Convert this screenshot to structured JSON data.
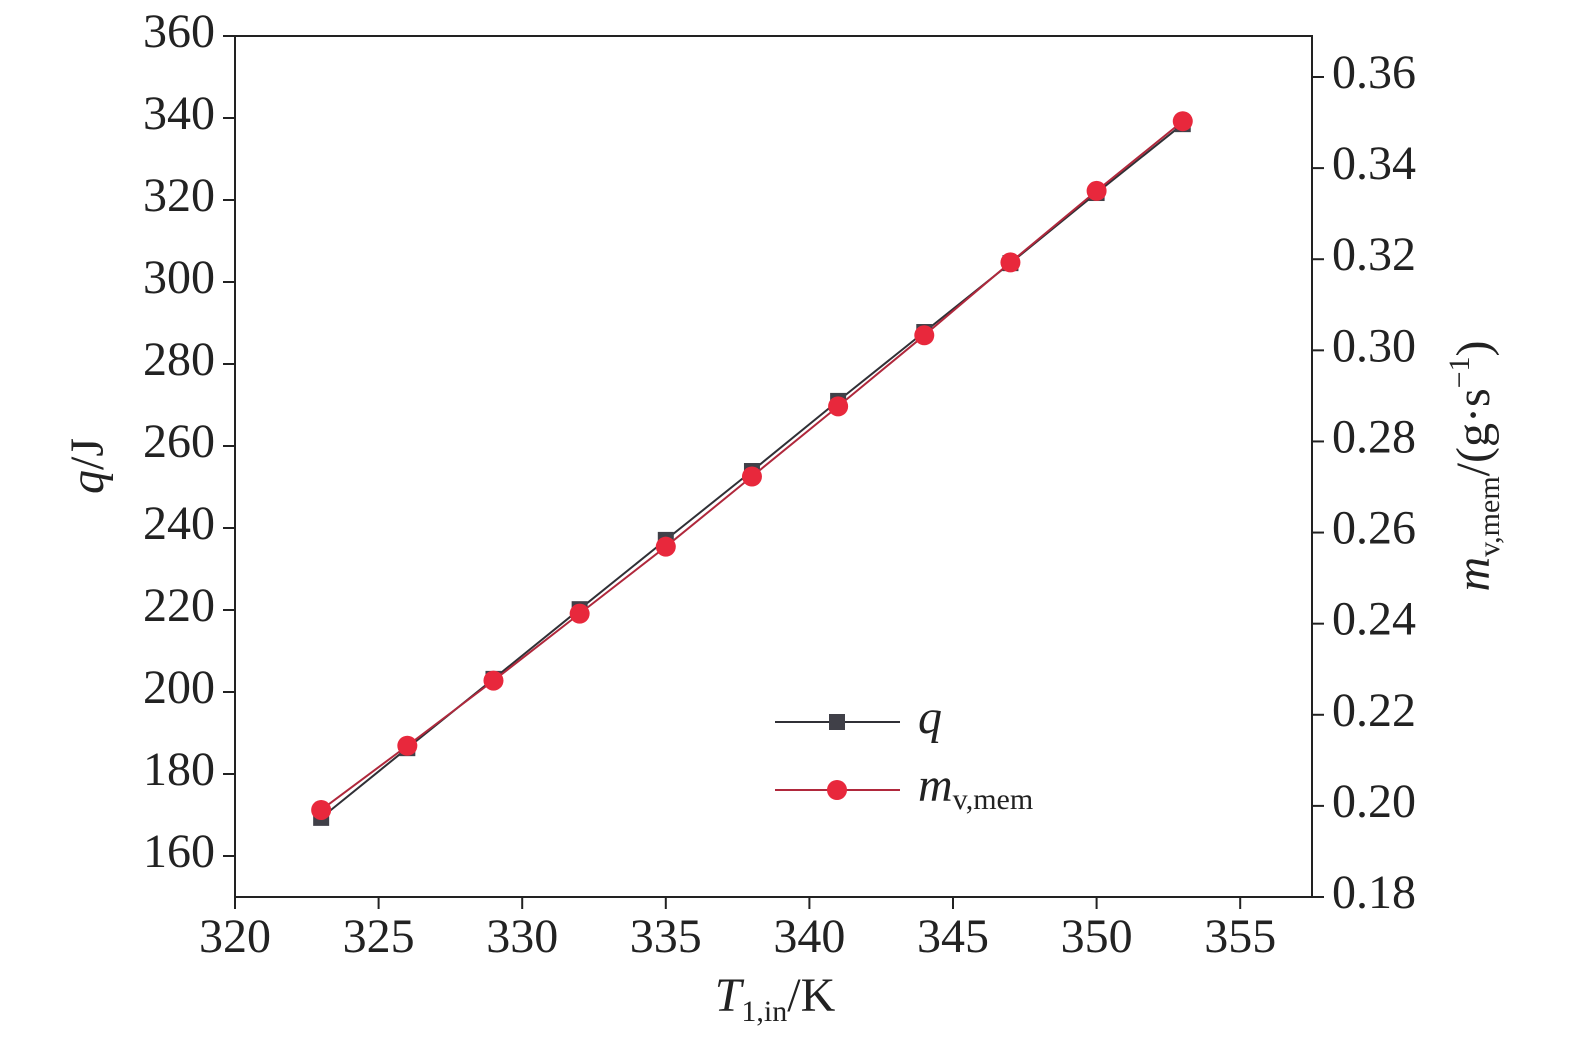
{
  "chart_data": {
    "type": "line",
    "xlabel": [
      "T",
      "1,in",
      "/K"
    ],
    "ylabel": [
      "q",
      "/J"
    ],
    "y2label": [
      "m",
      "v,mem",
      "/(g·s",
      "−1",
      ")"
    ],
    "x": [
      323,
      326,
      329,
      332,
      335,
      338,
      341,
      344,
      347,
      350,
      353
    ],
    "series": [
      {
        "name": "q",
        "color": "#404048",
        "line_color": "#303036",
        "marker": "square",
        "values": [
          169.3,
          186.3,
          203.2,
          220.2,
          237.1,
          253.9,
          271.0,
          287.8,
          304.6,
          321.7,
          338.5
        ]
      },
      {
        "name": "m",
        "name_subscript": "v,mem",
        "color": "#e8283c",
        "line_color": "#b0283c",
        "marker": "circle",
        "axis": "y2",
        "values": [
          0.1991,
          0.2132,
          0.2275,
          0.2422,
          0.2569,
          0.2723,
          0.2877,
          0.3033,
          0.3193,
          0.335,
          0.3503
        ]
      }
    ],
    "xlim": [
      320,
      357.5
    ],
    "xticks": [
      320,
      325,
      330,
      335,
      340,
      345,
      350,
      355
    ],
    "ylim": [
      150,
      360
    ],
    "yticks": [
      160,
      180,
      200,
      220,
      240,
      260,
      280,
      300,
      320,
      340,
      360
    ],
    "y2lim": [
      0.18,
      0.369
    ],
    "y2ticks": [
      0.18,
      {
        "value": 0.2,
        "label": "0.20"
      },
      0.22,
      0.24,
      0.26,
      0.28,
      {
        "value": 0.3,
        "label": "0.30"
      },
      0.32,
      0.34,
      0.36
    ],
    "grid": false,
    "legend": "lower right"
  }
}
